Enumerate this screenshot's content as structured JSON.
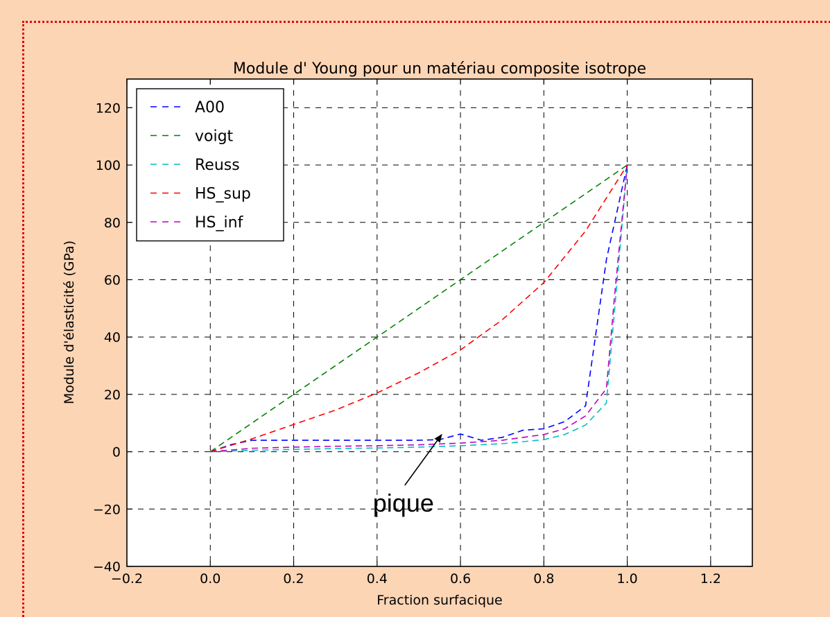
{
  "chart_data": {
    "type": "line",
    "title": "Module d' Young pour un matériau composite isotrope",
    "xlabel": "Fraction surfacique",
    "ylabel": "Module d'élasticité (GPa)",
    "xlim": [
      -0.2,
      1.3
    ],
    "ylim": [
      -40,
      130
    ],
    "xticks": [
      -0.2,
      0.0,
      0.2,
      0.4,
      0.6,
      0.8,
      1.0,
      1.2
    ],
    "xtick_labels": [
      "−0.2",
      "0.0",
      "0.2",
      "0.4",
      "0.6",
      "0.8",
      "1.0",
      "1.2"
    ],
    "yticks": [
      -40,
      -20,
      0,
      20,
      40,
      60,
      80,
      100,
      120
    ],
    "ytick_labels": [
      "−40",
      "−20",
      "0",
      "20",
      "40",
      "60",
      "80",
      "100",
      "120"
    ],
    "grid": true,
    "legend_position": "top-left",
    "series": [
      {
        "name": "A00",
        "color": "#0000ff",
        "x": [
          0,
          0.05,
          0.1,
          0.2,
          0.3,
          0.4,
          0.5,
          0.55,
          0.6,
          0.65,
          0.7,
          0.75,
          0.8,
          0.85,
          0.9,
          0.95,
          1.0
        ],
        "y": [
          0,
          2.5,
          4,
          4,
          4,
          4,
          4,
          4.2,
          6.2,
          4,
          5,
          7.5,
          8,
          10.5,
          16,
          67,
          100
        ]
      },
      {
        "name": "voigt",
        "color": "#008000",
        "x": [
          0,
          0.1,
          0.2,
          0.3,
          0.4,
          0.5,
          0.6,
          0.7,
          0.8,
          0.9,
          1.0
        ],
        "y": [
          0,
          10,
          20,
          30,
          40,
          50,
          60,
          70,
          80,
          90,
          100
        ]
      },
      {
        "name": "Reuss",
        "color": "#00bfbf",
        "x": [
          0,
          0.1,
          0.2,
          0.3,
          0.4,
          0.5,
          0.6,
          0.7,
          0.8,
          0.85,
          0.9,
          0.95,
          0.97,
          1.0
        ],
        "y": [
          0,
          0.5,
          0.8,
          1.1,
          1.3,
          1.6,
          2.1,
          2.8,
          4.2,
          6,
          9.3,
          17,
          50,
          100
        ]
      },
      {
        "name": "HS_sup",
        "color": "#ff0000",
        "x": [
          0,
          0.1,
          0.2,
          0.3,
          0.4,
          0.5,
          0.6,
          0.7,
          0.8,
          0.9,
          1.0
        ],
        "y": [
          0,
          4.5,
          9.5,
          14.5,
          20.5,
          27.5,
          35.5,
          46,
          59,
          77,
          100
        ]
      },
      {
        "name": "HS_inf",
        "color": "#bf00bf",
        "x": [
          0,
          0.1,
          0.2,
          0.3,
          0.4,
          0.5,
          0.6,
          0.7,
          0.8,
          0.85,
          0.9,
          0.95,
          0.97,
          1.0
        ],
        "y": [
          0,
          1.2,
          1.6,
          1.9,
          2.1,
          2.4,
          3,
          4,
          6,
          8,
          12.5,
          22,
          55,
          100
        ]
      }
    ],
    "annotations": [
      {
        "text": "pique",
        "xy": [
          0.555,
          6
        ],
        "xytext": [
          0.39,
          -18
        ]
      }
    ]
  }
}
